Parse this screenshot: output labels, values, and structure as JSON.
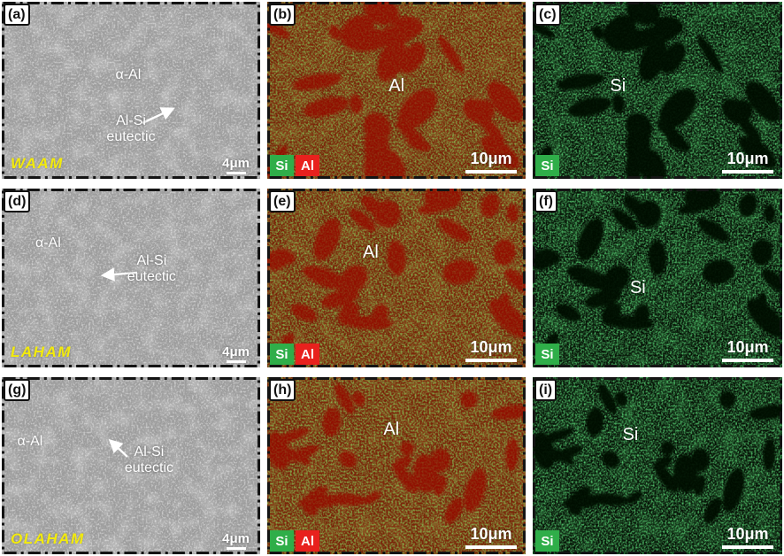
{
  "figure": {
    "colors": {
      "si_green": "#2fae49",
      "al_red": "#e8211d",
      "process_yellow": "#f3eb0c",
      "annotation_white": "#ffffff"
    },
    "panels": [
      {
        "tag": "(a)",
        "kind": "sem",
        "alpha_al": "α-Al",
        "eutectic_line1": "Al-Si",
        "eutectic_line2": "eutectic",
        "process": "WAAM",
        "scale": "4μm"
      },
      {
        "tag": "(b)",
        "kind": "eds-al",
        "element": "Al",
        "legend": {
          "si": "Si",
          "al": "Al"
        },
        "scale": "10μm"
      },
      {
        "tag": "(c)",
        "kind": "eds-si",
        "element": "Si",
        "legend": {
          "si": "Si"
        },
        "scale": "10μm"
      },
      {
        "tag": "(d)",
        "kind": "sem",
        "alpha_al": "α-Al",
        "eutectic_line1": "Al-Si",
        "eutectic_line2": "eutectic",
        "process": "LAHAM",
        "scale": "4μm"
      },
      {
        "tag": "(e)",
        "kind": "eds-al",
        "element": "Al",
        "legend": {
          "si": "Si",
          "al": "Al"
        },
        "scale": "10μm"
      },
      {
        "tag": "(f)",
        "kind": "eds-si",
        "element": "Si",
        "legend": {
          "si": "Si"
        },
        "scale": "10μm"
      },
      {
        "tag": "(g)",
        "kind": "sem",
        "alpha_al": "α-Al",
        "eutectic_line1": "Al-Si",
        "eutectic_line2": "eutectic",
        "process": "OLAHAM",
        "scale": "4μm"
      },
      {
        "tag": "(h)",
        "kind": "eds-al",
        "element": "Al",
        "legend": {
          "si": "Si",
          "al": "Al"
        },
        "scale": "10μm"
      },
      {
        "tag": "(i)",
        "kind": "eds-si",
        "element": "Si",
        "legend": {
          "si": "Si"
        },
        "scale": "10μm"
      }
    ]
  }
}
